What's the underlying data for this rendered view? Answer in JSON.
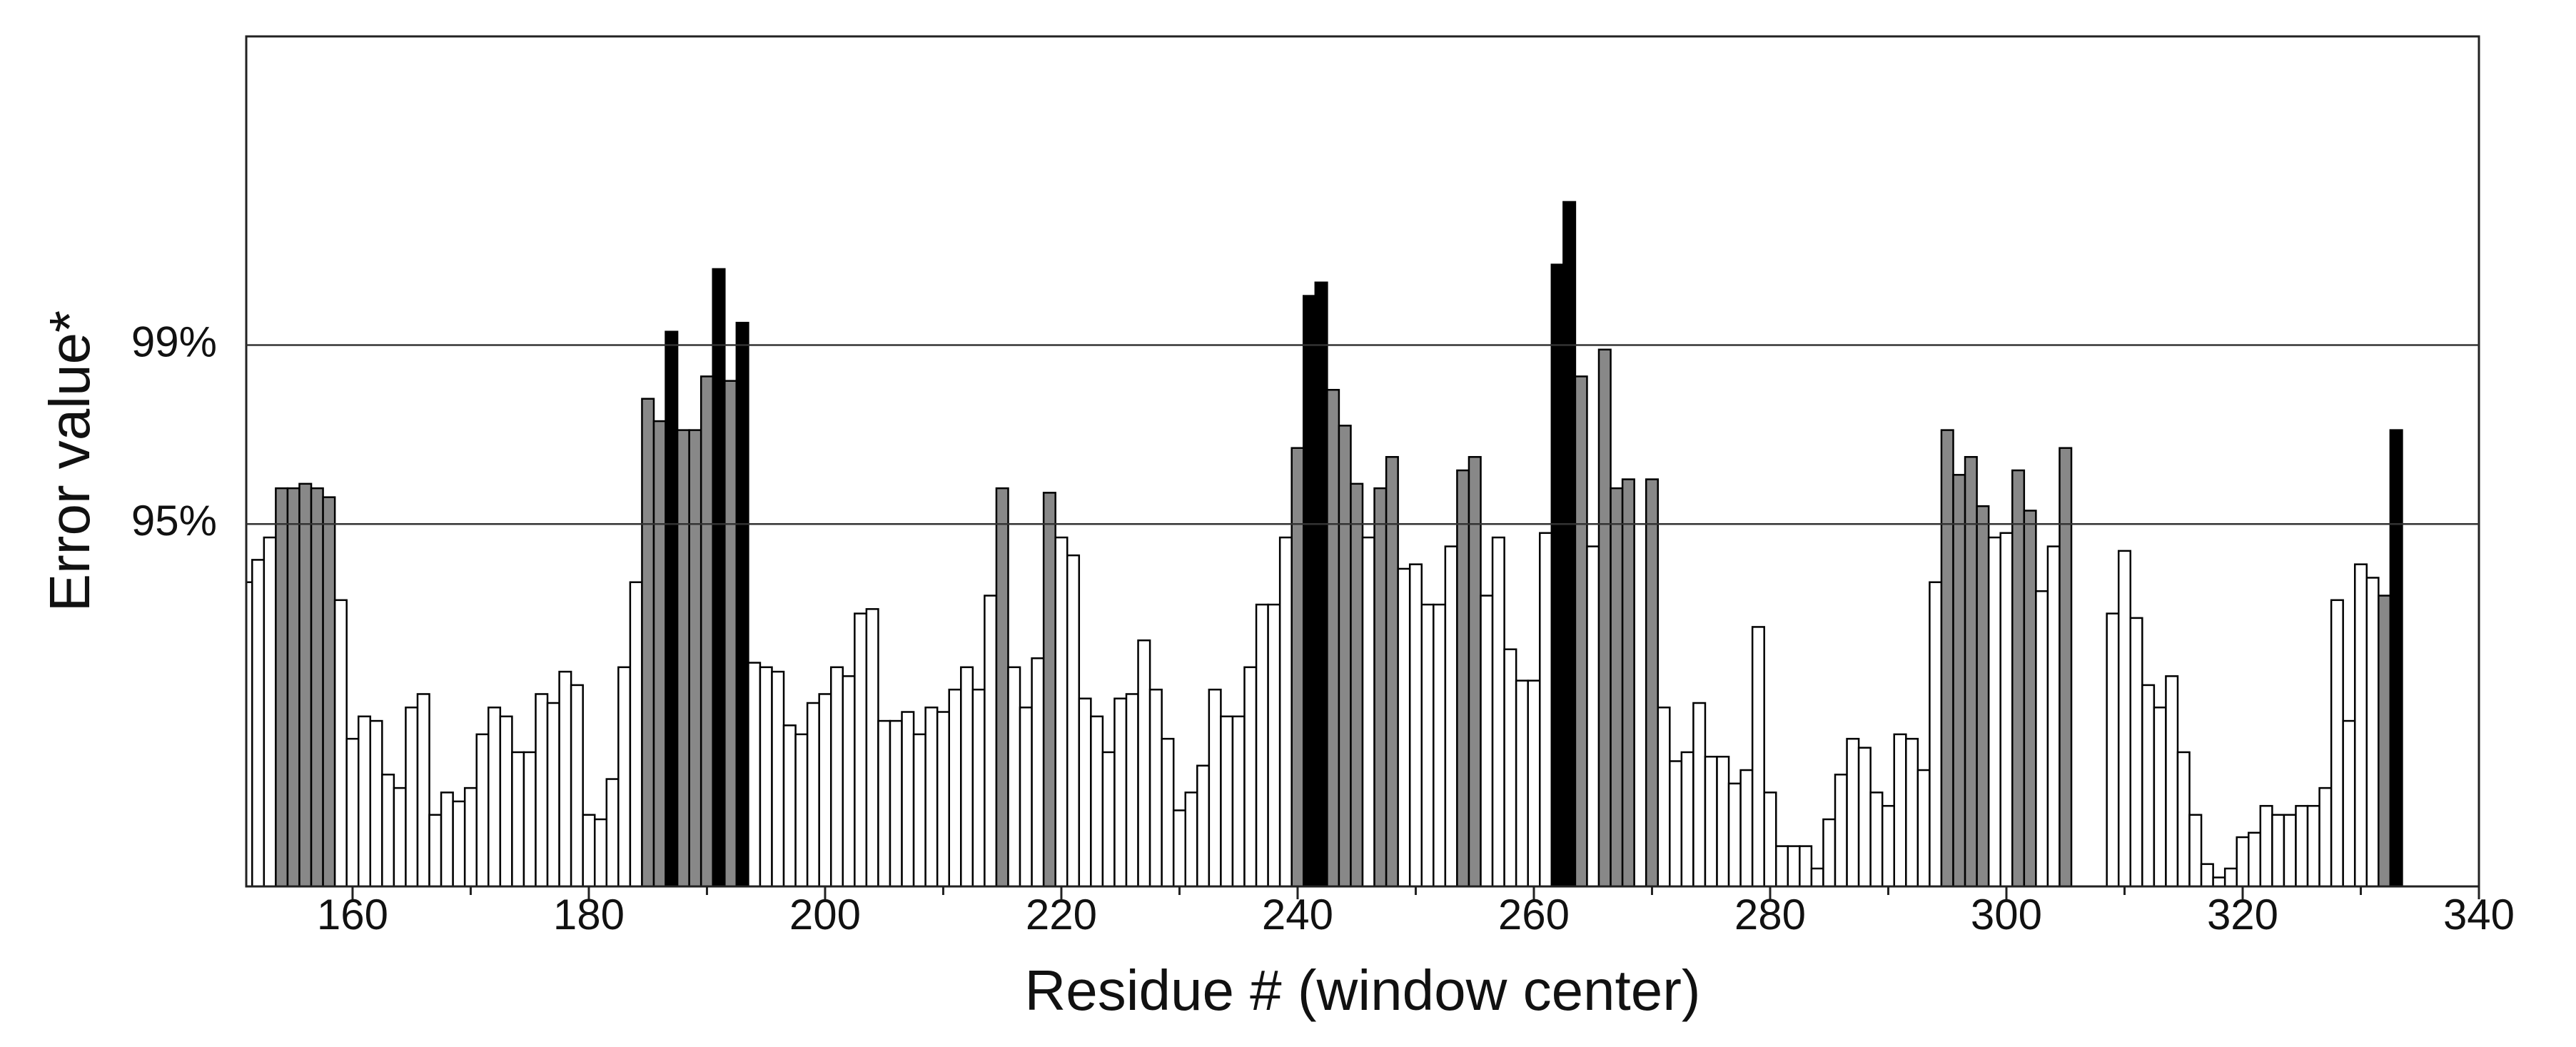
{
  "chart_data": {
    "type": "bar",
    "y_label": "Error value*",
    "x_label": "Residue # (window center)",
    "x": [
      151,
      152,
      153,
      154,
      155,
      156,
      157,
      158,
      159,
      160,
      161,
      162,
      163,
      164,
      165,
      166,
      167,
      168,
      169,
      170,
      171,
      172,
      173,
      174,
      175,
      176,
      177,
      178,
      179,
      180,
      181,
      182,
      183,
      184,
      185,
      186,
      187,
      188,
      189,
      190,
      191,
      192,
      193,
      194,
      195,
      196,
      197,
      198,
      199,
      200,
      201,
      202,
      203,
      204,
      205,
      206,
      207,
      208,
      209,
      210,
      211,
      212,
      213,
      214,
      215,
      216,
      217,
      218,
      219,
      220,
      221,
      222,
      223,
      224,
      225,
      226,
      227,
      228,
      229,
      230,
      231,
      232,
      233,
      234,
      235,
      236,
      237,
      238,
      239,
      240,
      241,
      242,
      243,
      244,
      245,
      246,
      247,
      248,
      249,
      250,
      251,
      252,
      253,
      254,
      255,
      256,
      257,
      258,
      259,
      260,
      261,
      262,
      263,
      264,
      265,
      266,
      267,
      268,
      269,
      270,
      271,
      272,
      273,
      274,
      275,
      276,
      277,
      278,
      279,
      280,
      281,
      282,
      283,
      284,
      285,
      286,
      287,
      288,
      289,
      290,
      291,
      292,
      293,
      294,
      295,
      296,
      297,
      298,
      299,
      300,
      301,
      302,
      303,
      304,
      305,
      306,
      307,
      308,
      309,
      310,
      311,
      312,
      313,
      314,
      315,
      316,
      317,
      318,
      319,
      320,
      321,
      322,
      323,
      324,
      325,
      326,
      327,
      328,
      329,
      330,
      331,
      332,
      333
    ],
    "values": [
      93.7,
      94.2,
      94.7,
      95.8,
      95.8,
      95.9,
      95.8,
      95.6,
      93.3,
      90.2,
      90.7,
      90.6,
      89.4,
      89.1,
      90.9,
      91.2,
      88.5,
      89.0,
      88.8,
      89.1,
      90.3,
      90.9,
      90.7,
      89.9,
      89.9,
      91.2,
      91.0,
      91.7,
      91.4,
      88.5,
      88.4,
      89.3,
      91.8,
      93.7,
      97.8,
      97.3,
      99.3,
      97.1,
      97.1,
      98.3,
      100.7,
      98.2,
      99.5,
      91.9,
      91.8,
      91.7,
      90.5,
      90.3,
      91.0,
      91.2,
      91.8,
      91.6,
      93.0,
      93.1,
      90.6,
      90.6,
      90.8,
      90.3,
      90.9,
      90.8,
      91.3,
      91.8,
      91.3,
      93.4,
      95.8,
      91.8,
      90.9,
      92.0,
      95.7,
      94.7,
      94.3,
      91.1,
      90.7,
      89.9,
      91.1,
      91.2,
      92.4,
      91.3,
      90.2,
      88.6,
      89.0,
      89.6,
      91.3,
      90.7,
      90.7,
      91.8,
      93.2,
      93.2,
      94.7,
      96.7,
      100.1,
      100.4,
      98.0,
      97.2,
      95.9,
      94.7,
      95.8,
      96.5,
      94.0,
      94.1,
      93.2,
      93.2,
      94.5,
      96.2,
      96.5,
      93.4,
      94.7,
      92.2,
      91.5,
      91.5,
      94.8,
      100.8,
      102.2,
      98.3,
      94.5,
      98.9,
      95.8,
      96.0,
      95.0,
      96.0,
      90.9,
      89.7,
      89.9,
      91.0,
      89.8,
      89.8,
      89.2,
      89.5,
      92.7,
      89.0,
      87.8,
      87.8,
      87.8,
      87.3,
      88.4,
      89.4,
      90.2,
      90.0,
      89.0,
      88.7,
      90.3,
      90.2,
      89.5,
      93.7,
      97.1,
      96.1,
      96.5,
      95.4,
      94.7,
      94.8,
      96.2,
      95.3,
      93.5,
      94.5,
      96.7,
      86.9,
      86.9,
      86.9,
      93.0,
      94.4,
      92.9,
      91.4,
      90.9,
      91.6,
      89.9,
      88.5,
      87.4,
      87.1,
      87.3,
      88.0,
      88.1,
      88.7,
      88.5,
      88.5,
      88.7,
      88.7,
      89.1,
      93.3,
      90.6,
      94.1,
      93.8,
      93.4,
      97.1
    ],
    "colors": [
      "#fff",
      "#fff",
      "#fff",
      "#888",
      "#888",
      "#888",
      "#888",
      "#888",
      "#fff",
      "#fff",
      "#fff",
      "#fff",
      "#fff",
      "#fff",
      "#fff",
      "#fff",
      "#fff",
      "#fff",
      "#fff",
      "#fff",
      "#fff",
      "#fff",
      "#fff",
      "#fff",
      "#fff",
      "#fff",
      "#fff",
      "#fff",
      "#fff",
      "#fff",
      "#fff",
      "#fff",
      "#fff",
      "#fff",
      "#888",
      "#888",
      "#000",
      "#888",
      "#888",
      "#888",
      "#000",
      "#888",
      "#000",
      "#fff",
      "#fff",
      "#fff",
      "#fff",
      "#fff",
      "#fff",
      "#fff",
      "#fff",
      "#fff",
      "#fff",
      "#fff",
      "#fff",
      "#fff",
      "#fff",
      "#fff",
      "#fff",
      "#fff",
      "#fff",
      "#fff",
      "#fff",
      "#fff",
      "#888",
      "#fff",
      "#fff",
      "#fff",
      "#888",
      "#fff",
      "#fff",
      "#fff",
      "#fff",
      "#fff",
      "#fff",
      "#fff",
      "#fff",
      "#fff",
      "#fff",
      "#fff",
      "#fff",
      "#fff",
      "#fff",
      "#fff",
      "#fff",
      "#fff",
      "#fff",
      "#fff",
      "#fff",
      "#888",
      "#000",
      "#000",
      "#888",
      "#888",
      "#888",
      "#fff",
      "#888",
      "#888",
      "#fff",
      "#fff",
      "#fff",
      "#fff",
      "#fff",
      "#888",
      "#888",
      "#fff",
      "#fff",
      "#fff",
      "#fff",
      "#fff",
      "#fff",
      "#000",
      "#000",
      "#888",
      "#fff",
      "#888",
      "#888",
      "#888",
      "#fff",
      "#888",
      "#fff",
      "#fff",
      "#fff",
      "#fff",
      "#fff",
      "#fff",
      "#fff",
      "#fff",
      "#fff",
      "#fff",
      "#fff",
      "#fff",
      "#fff",
      "#fff",
      "#fff",
      "#fff",
      "#fff",
      "#fff",
      "#fff",
      "#fff",
      "#fff",
      "#fff",
      "#fff",
      "#fff",
      "#888",
      "#888",
      "#888",
      "#888",
      "#fff",
      "#fff",
      "#888",
      "#888",
      "#fff",
      "#fff",
      "#888",
      "#fff",
      "#fff",
      "#fff",
      "#fff",
      "#fff",
      "#fff",
      "#fff",
      "#fff",
      "#fff",
      "#fff",
      "#fff",
      "#fff",
      "#fff",
      "#fff",
      "#fff",
      "#fff",
      "#fff",
      "#fff",
      "#fff",
      "#fff",
      "#fff",
      "#fff",
      "#fff",
      "#fff",
      "#fff",
      "#fff",
      "#888"
    ],
    "xlim": [
      151,
      340
    ],
    "xticks": [
      160,
      180,
      200,
      220,
      240,
      260,
      280,
      300,
      320,
      340
    ],
    "xminor_ticks": [
      170,
      190,
      210,
      230,
      250,
      270,
      290,
      310,
      330
    ],
    "ylim": [
      86.9,
      105.9
    ],
    "yticks": [
      {
        "value": 95,
        "label": "95%"
      },
      {
        "value": 99,
        "label": "99%"
      }
    ],
    "grid": true
  }
}
